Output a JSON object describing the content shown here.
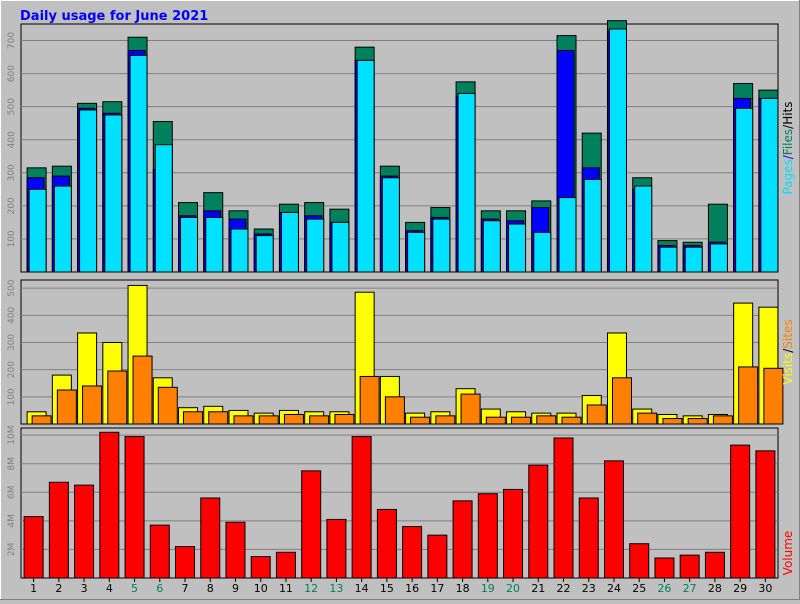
{
  "chart_data": [
    {
      "type": "bar",
      "title": "Daily usage for June 2021",
      "ylabel_parts": [
        "Pages",
        "/",
        "Files",
        "/",
        "Hits"
      ],
      "ylim": [
        0,
        750
      ],
      "yticks": [
        "100",
        "200",
        "300",
        "400",
        "500",
        "600",
        "700"
      ],
      "categories": [
        "1",
        "2",
        "3",
        "4",
        "5",
        "6",
        "7",
        "8",
        "9",
        "10",
        "11",
        "12",
        "13",
        "14",
        "15",
        "16",
        "17",
        "18",
        "19",
        "20",
        "21",
        "22",
        "23",
        "24",
        "25",
        "26",
        "27",
        "28",
        "29",
        "30"
      ],
      "weekend_days": [
        "5",
        "6",
        "12",
        "13",
        "19",
        "20",
        "26",
        "27"
      ],
      "series": [
        {
          "name": "Hits",
          "values": [
            315,
            320,
            510,
            515,
            710,
            455,
            210,
            240,
            185,
            130,
            205,
            210,
            190,
            680,
            320,
            150,
            195,
            575,
            185,
            185,
            215,
            715,
            420,
            760,
            285,
            95,
            90,
            205,
            570,
            550
          ]
        },
        {
          "name": "Files",
          "values": [
            285,
            290,
            495,
            480,
            670,
            310,
            170,
            185,
            160,
            115,
            180,
            170,
            150,
            640,
            290,
            125,
            165,
            530,
            160,
            155,
            195,
            670,
            315,
            730,
            250,
            80,
            80,
            90,
            525,
            525
          ]
        },
        {
          "name": "Pages",
          "values": [
            250,
            260,
            490,
            475,
            655,
            385,
            165,
            165,
            130,
            110,
            180,
            160,
            150,
            640,
            285,
            120,
            160,
            540,
            155,
            145,
            120,
            225,
            280,
            735,
            260,
            75,
            75,
            85,
            495,
            525
          ]
        }
      ]
    },
    {
      "type": "bar",
      "ylabel_parts": [
        "Visits",
        "/",
        "Sites"
      ],
      "ylim": [
        0,
        530
      ],
      "yticks": [
        "100",
        "200",
        "300",
        "400",
        "500"
      ],
      "series": [
        {
          "name": "Visits",
          "values": [
            45,
            180,
            335,
            300,
            510,
            170,
            60,
            65,
            50,
            40,
            50,
            45,
            45,
            485,
            175,
            40,
            45,
            130,
            55,
            45,
            40,
            40,
            105,
            335,
            55,
            35,
            30,
            35,
            445,
            430
          ]
        },
        {
          "name": "Sites",
          "values": [
            30,
            125,
            140,
            195,
            250,
            135,
            45,
            45,
            30,
            30,
            35,
            30,
            35,
            175,
            100,
            25,
            30,
            110,
            25,
            25,
            30,
            25,
            70,
            170,
            40,
            20,
            20,
            30,
            210,
            205
          ]
        }
      ]
    },
    {
      "type": "bar",
      "ylabel_parts": [
        "Volume"
      ],
      "ylim": [
        0,
        10.5
      ],
      "yticks": [
        "2M",
        "4M",
        "6M",
        "8M",
        "10M"
      ],
      "series": [
        {
          "name": "Volume",
          "unit": "MB",
          "values": [
            4.3,
            6.7,
            6.5,
            10.2,
            9.9,
            3.7,
            2.2,
            5.6,
            3.9,
            1.5,
            1.8,
            7.5,
            4.1,
            9.9,
            4.8,
            3.6,
            3.0,
            5.4,
            5.9,
            6.2,
            7.9,
            9.8,
            5.6,
            8.2,
            2.4,
            1.4,
            1.6,
            1.8,
            9.3,
            8.9
          ]
        }
      ]
    }
  ],
  "colors": {
    "background": "#c0c0c0",
    "panel": "#c0c0c0",
    "grid": "#808080",
    "title": "#0000ff",
    "hits": "#00805c",
    "files": "#0000ff",
    "pages": "#00e0ff",
    "visits": "#ffff00",
    "sites": "#ff8000",
    "volume": "#ff0000",
    "weekday_label": "#000000",
    "weekend_label": "#00805c"
  }
}
